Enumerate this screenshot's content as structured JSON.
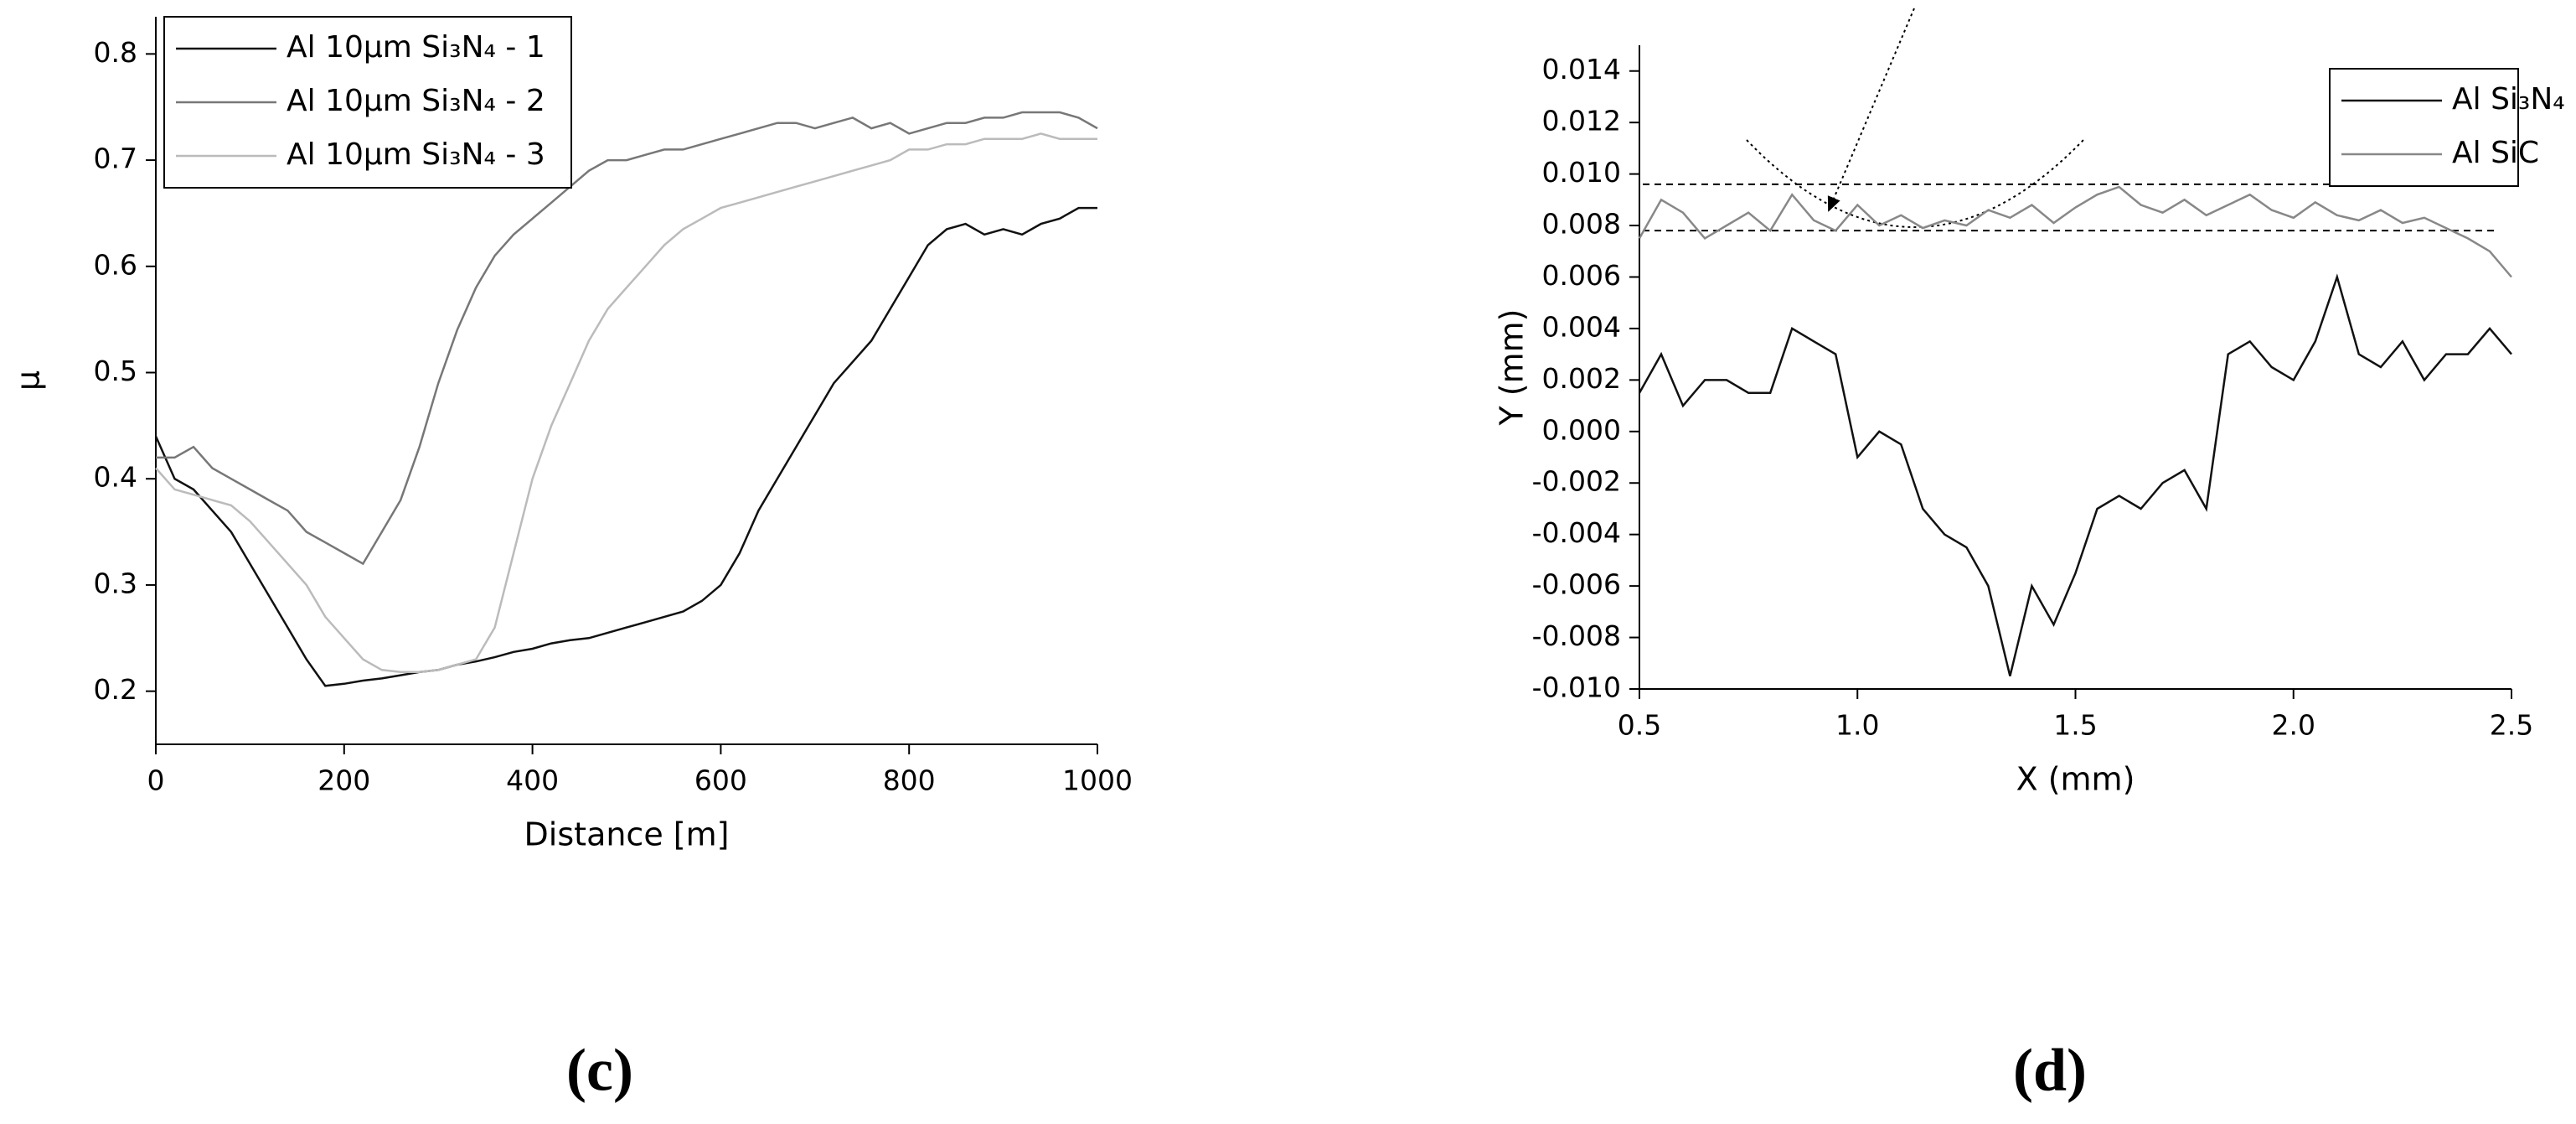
{
  "chart_data": [
    {
      "type": "line",
      "caption": "(c)",
      "x_label": "Distance [m]",
      "y_label": "μ",
      "x": [
        0,
        20,
        40,
        60,
        80,
        100,
        120,
        140,
        160,
        180,
        200,
        220,
        240,
        260,
        280,
        300,
        320,
        340,
        360,
        380,
        400,
        420,
        440,
        460,
        480,
        500,
        520,
        540,
        560,
        580,
        600,
        620,
        640,
        660,
        680,
        700,
        720,
        740,
        760,
        780,
        800,
        820,
        840,
        860,
        880,
        900,
        920,
        940,
        960,
        980,
        1000
      ],
      "series": [
        {
          "name": "Al 10µm Si₃N₄ - 1",
          "color": "#111111",
          "values": [
            0.44,
            0.4,
            0.39,
            0.37,
            0.35,
            0.32,
            0.29,
            0.26,
            0.23,
            0.205,
            0.207,
            0.21,
            0.212,
            0.215,
            0.218,
            0.22,
            0.225,
            0.228,
            0.232,
            0.237,
            0.24,
            0.245,
            0.248,
            0.25,
            0.255,
            0.26,
            0.265,
            0.27,
            0.275,
            0.285,
            0.3,
            0.33,
            0.37,
            0.4,
            0.43,
            0.46,
            0.49,
            0.51,
            0.53,
            0.56,
            0.59,
            0.62,
            0.635,
            0.64,
            0.63,
            0.635,
            0.63,
            0.64,
            0.645,
            0.655,
            0.655
          ]
        },
        {
          "name": "Al 10µm Si₃N₄ - 2",
          "color": "#777777",
          "values": [
            0.42,
            0.42,
            0.43,
            0.41,
            0.4,
            0.39,
            0.38,
            0.37,
            0.35,
            0.34,
            0.33,
            0.32,
            0.35,
            0.38,
            0.43,
            0.49,
            0.54,
            0.58,
            0.61,
            0.63,
            0.645,
            0.66,
            0.675,
            0.69,
            0.7,
            0.7,
            0.705,
            0.71,
            0.71,
            0.715,
            0.72,
            0.725,
            0.73,
            0.735,
            0.735,
            0.73,
            0.735,
            0.74,
            0.73,
            0.735,
            0.725,
            0.73,
            0.735,
            0.735,
            0.74,
            0.74,
            0.745,
            0.745,
            0.745,
            0.74,
            0.73
          ]
        },
        {
          "name": "Al 10µm Si₃N₄ - 3",
          "color": "#bbbbbb",
          "values": [
            0.41,
            0.39,
            0.385,
            0.38,
            0.375,
            0.36,
            0.34,
            0.32,
            0.3,
            0.27,
            0.25,
            0.23,
            0.22,
            0.218,
            0.218,
            0.22,
            0.225,
            0.23,
            0.26,
            0.33,
            0.4,
            0.45,
            0.49,
            0.53,
            0.56,
            0.58,
            0.6,
            0.62,
            0.635,
            0.645,
            0.655,
            0.66,
            0.665,
            0.67,
            0.675,
            0.68,
            0.685,
            0.69,
            0.695,
            0.7,
            0.71,
            0.71,
            0.715,
            0.715,
            0.72,
            0.72,
            0.72,
            0.725,
            0.72,
            0.72,
            0.72
          ]
        }
      ],
      "xlim": [
        0,
        1000
      ],
      "xticks": [
        0,
        200,
        400,
        600,
        800,
        1000
      ],
      "ylim": [
        0.15,
        0.835
      ],
      "yticks": [
        0.2,
        0.3,
        0.4,
        0.5,
        0.6,
        0.7,
        0.8
      ],
      "legend": "upper left"
    },
    {
      "type": "line",
      "caption": "(d)",
      "x_label": "X (mm)",
      "y_label": "Y (mm)",
      "x": [
        0.5,
        0.55,
        0.6,
        0.65,
        0.7,
        0.75,
        0.8,
        0.85,
        0.9,
        0.95,
        1.0,
        1.05,
        1.1,
        1.15,
        1.2,
        1.25,
        1.3,
        1.35,
        1.4,
        1.45,
        1.5,
        1.55,
        1.6,
        1.65,
        1.7,
        1.75,
        1.8,
        1.85,
        1.9,
        1.95,
        2.0,
        2.05,
        2.1,
        2.15,
        2.2,
        2.25,
        2.3,
        2.35,
        2.4,
        2.45,
        2.5
      ],
      "series": [
        {
          "name": "Al Si₃N₄",
          "color": "#111111",
          "values": [
            0.0015,
            0.003,
            0.001,
            0.002,
            0.002,
            0.0015,
            0.0015,
            0.004,
            0.0035,
            0.003,
            -0.001,
            0.0,
            -0.0005,
            -0.003,
            -0.004,
            -0.0045,
            -0.006,
            -0.0095,
            -0.006,
            -0.0075,
            -0.0055,
            -0.003,
            -0.0025,
            -0.003,
            -0.002,
            -0.0015,
            -0.003,
            0.003,
            0.0035,
            0.0025,
            0.002,
            0.0035,
            0.006,
            0.003,
            0.0025,
            0.0035,
            0.002,
            0.003,
            0.003,
            0.004,
            0.003
          ]
        },
        {
          "name": "Al SiC",
          "color": "#888888",
          "values": [
            0.0075,
            0.009,
            0.0085,
            0.0075,
            0.008,
            0.0085,
            0.0078,
            0.0092,
            0.0082,
            0.0078,
            0.0088,
            0.008,
            0.0084,
            0.0079,
            0.0082,
            0.008,
            0.0086,
            0.0083,
            0.0088,
            0.0081,
            0.0087,
            0.0092,
            0.0095,
            0.0088,
            0.0085,
            0.009,
            0.0084,
            0.0088,
            0.0092,
            0.0086,
            0.0083,
            0.0089,
            0.0084,
            0.0082,
            0.0086,
            0.0081,
            0.0083,
            0.0079,
            0.0075,
            0.007,
            0.006
          ]
        }
      ],
      "xlim": [
        0.5,
        2.5
      ],
      "xticks": [
        0.5,
        {
          "value": 1.0,
          "label": "1.0"
        },
        1.5,
        {
          "value": 2.0,
          "label": "2.0"
        },
        2.5
      ],
      "ylim": [
        -0.01,
        0.015
      ],
      "yticks": [
        {
          "value": -0.01,
          "label": "-0.010"
        },
        -0.008,
        -0.006,
        -0.004,
        -0.002,
        {
          "value": 0,
          "label": "0.000"
        },
        0.002,
        0.004,
        0.006,
        0.008,
        {
          "value": 0.01,
          "label": "0.010"
        },
        0.012,
        0.014
      ],
      "reference_lines": [
        0.0096,
        0.0078
      ],
      "legend": "upper right"
    }
  ]
}
